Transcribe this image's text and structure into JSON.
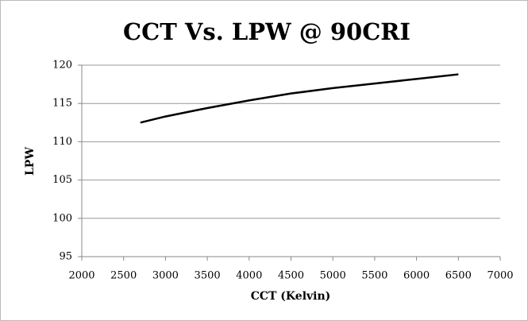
{
  "chart_data": {
    "type": "line",
    "title": "CCT Vs. LPW @ 90CRI",
    "x_label": "CCT (Kelvin)",
    "y_label": "LPW",
    "x": [
      2700,
      3000,
      3500,
      4000,
      4500,
      5000,
      5500,
      6000,
      6500
    ],
    "series": [
      {
        "name": "LPW",
        "color": "#000000",
        "values": [
          112.5,
          113.3,
          114.4,
          115.4,
          116.3,
          117.0,
          117.6,
          118.2,
          118.8
        ]
      }
    ],
    "xlim": [
      2000,
      7000
    ],
    "xticks": [
      2000,
      2500,
      3000,
      3500,
      4000,
      4500,
      5000,
      5500,
      6000,
      6500,
      7000
    ],
    "ylim": [
      95,
      120
    ],
    "yticks": [
      95,
      100,
      105,
      110,
      115,
      120
    ],
    "grid": true
  }
}
